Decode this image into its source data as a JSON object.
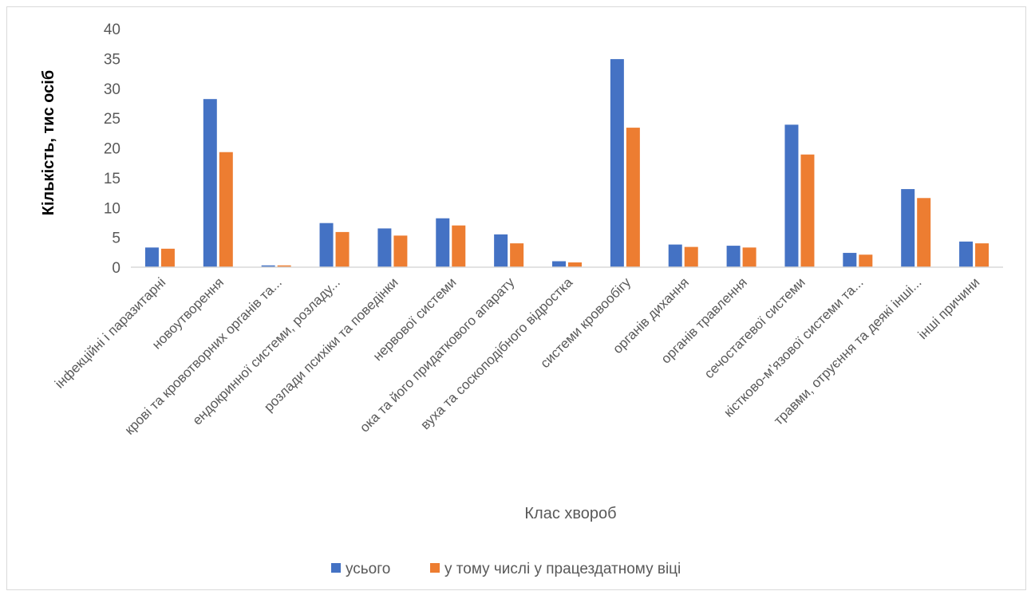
{
  "chart_data": {
    "type": "bar",
    "ylabel": "Кількість, тис осіб",
    "xlabel": "Клас хвороб",
    "ylim": [
      0,
      40
    ],
    "yticks": [
      0,
      5,
      10,
      15,
      20,
      25,
      30,
      35,
      40
    ],
    "grid": false,
    "legend_position": "bottom",
    "categories": [
      "інфекційні і паразитарні",
      "новоутворення",
      "крові та кровотворних органів та...",
      "ендокринної системи, розладу...",
      "розлади психіки та поведінки",
      "нервової системи",
      "ока та його придаткового апарату",
      "вуха та соскоподібного відростка",
      "системи кровообігу",
      "органів дихання",
      "органів травлення",
      "сечостатевої системи",
      "кістково-м’язової системи та...",
      "травми, отруєння та деякі інші...",
      "інші причини"
    ],
    "series": [
      {
        "name": "усього",
        "color": "#4472c4",
        "values": [
          3.3,
          28.2,
          0.3,
          7.4,
          6.5,
          8.2,
          5.5,
          1.0,
          34.9,
          3.8,
          3.6,
          23.9,
          2.4,
          13.1,
          4.3
        ]
      },
      {
        "name": "у тому числі у працездатному віці",
        "color": "#ed7d31",
        "values": [
          3.1,
          19.3,
          0.3,
          5.9,
          5.3,
          7.0,
          4.0,
          0.8,
          23.4,
          3.4,
          3.3,
          18.9,
          2.1,
          11.6,
          4.0
        ]
      }
    ]
  }
}
